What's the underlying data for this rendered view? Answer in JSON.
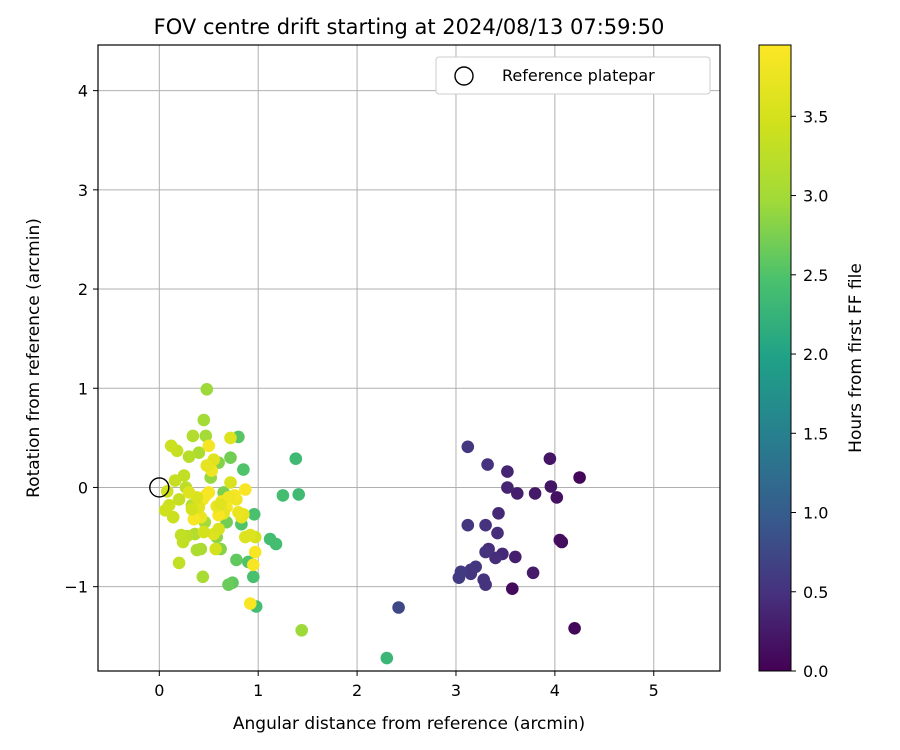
{
  "chart_data": {
    "type": "scatter",
    "title": "FOV centre drift starting at 2024/08/13 07:59:50",
    "xlabel": "Angular distance from reference (arcmin)",
    "ylabel": "Rotation from reference (arcmin)",
    "xlim": [
      -0.62,
      5.67
    ],
    "ylim": [
      -1.85,
      4.46
    ],
    "xticks": [
      0,
      1,
      2,
      3,
      4,
      5
    ],
    "yticks": [
      -1,
      0,
      1,
      2,
      3,
      4
    ],
    "grid": true,
    "legend": {
      "placement": "top-right",
      "entries": [
        "Reference platepar"
      ]
    },
    "reference_point": {
      "name": "Reference platepar",
      "x": 0.0,
      "y": 0.0
    },
    "colorbar": {
      "label": "Hours from first FF file",
      "range": [
        0.0,
        3.95
      ],
      "colormap": "viridis",
      "ticks": [
        0.0,
        0.5,
        1.0,
        1.5,
        2.0,
        2.5,
        3.0,
        3.5
      ],
      "tick_labels": [
        "0.0",
        "0.5",
        "1.0",
        "1.5",
        "2.0",
        "2.5",
        "3.0",
        "3.5"
      ]
    },
    "series": [
      {
        "points": [
          [
            4.25,
            0.1,
            0.05
          ],
          [
            4.2,
            -1.42,
            0.05
          ],
          [
            4.07,
            -0.55,
            0.1
          ],
          [
            4.05,
            -0.53,
            0.12
          ],
          [
            4.02,
            -0.1,
            0.15
          ],
          [
            3.96,
            0.01,
            0.2
          ],
          [
            3.95,
            0.29,
            0.2
          ],
          [
            3.8,
            -0.06,
            0.25
          ],
          [
            3.78,
            -0.86,
            0.25
          ],
          [
            3.62,
            -0.06,
            0.3
          ],
          [
            3.6,
            -0.7,
            0.3
          ],
          [
            3.57,
            -1.02,
            0.1
          ],
          [
            3.52,
            0.16,
            0.35
          ],
          [
            3.52,
            0.0,
            0.35
          ],
          [
            3.47,
            -0.67,
            0.4
          ],
          [
            3.43,
            -0.26,
            0.4
          ],
          [
            3.42,
            -0.46,
            0.45
          ],
          [
            3.4,
            -0.71,
            0.45
          ],
          [
            3.33,
            -0.62,
            0.45
          ],
          [
            3.32,
            0.23,
            0.5
          ],
          [
            3.3,
            -0.38,
            0.5
          ],
          [
            3.3,
            -0.65,
            0.5
          ],
          [
            3.28,
            -0.93,
            0.5
          ],
          [
            3.3,
            -0.98,
            0.5
          ],
          [
            3.2,
            -0.8,
            0.55
          ],
          [
            3.15,
            -0.83,
            0.55
          ],
          [
            3.15,
            -0.87,
            0.55
          ],
          [
            3.12,
            -0.38,
            0.55
          ],
          [
            3.12,
            0.41,
            0.55
          ],
          [
            3.05,
            -0.85,
            0.6
          ],
          [
            3.03,
            -0.91,
            0.6
          ],
          [
            2.42,
            -1.21,
            0.75
          ],
          [
            2.3,
            -1.72,
            2.3
          ],
          [
            1.44,
            -1.44,
            2.95
          ],
          [
            1.41,
            -0.07,
            2.35
          ],
          [
            1.38,
            0.29,
            2.35
          ],
          [
            1.25,
            -0.08,
            2.4
          ],
          [
            1.18,
            -0.57,
            2.4
          ],
          [
            1.12,
            -0.52,
            2.4
          ],
          [
            0.98,
            -1.2,
            2.4
          ],
          [
            0.96,
            -0.27,
            2.45
          ],
          [
            0.95,
            -0.9,
            2.45
          ],
          [
            0.9,
            -0.75,
            2.5
          ],
          [
            0.85,
            0.18,
            2.5
          ],
          [
            0.83,
            -0.37,
            2.5
          ],
          [
            0.8,
            0.51,
            2.55
          ],
          [
            0.78,
            -0.73,
            2.6
          ],
          [
            0.74,
            -0.96,
            2.6
          ],
          [
            0.7,
            -0.98,
            2.65
          ],
          [
            0.72,
            0.3,
            2.7
          ],
          [
            0.68,
            -0.35,
            2.7
          ],
          [
            0.65,
            -0.05,
            2.75
          ],
          [
            0.62,
            -0.62,
            2.8
          ],
          [
            0.6,
            0.25,
            2.8
          ],
          [
            0.58,
            -0.5,
            2.85
          ],
          [
            0.52,
            0.1,
            2.9
          ],
          [
            0.48,
            0.99,
            2.95
          ],
          [
            0.47,
            0.52,
            3.0
          ],
          [
            0.46,
            -0.35,
            3.0
          ],
          [
            0.45,
            0.68,
            3.0
          ],
          [
            0.44,
            -0.9,
            3.05
          ],
          [
            0.42,
            -0.62,
            3.05
          ],
          [
            0.4,
            0.35,
            3.1
          ],
          [
            0.38,
            -0.63,
            3.1
          ],
          [
            0.36,
            -0.47,
            3.15
          ],
          [
            0.34,
            0.52,
            3.15
          ],
          [
            0.33,
            -0.18,
            3.2
          ],
          [
            0.3,
            0.31,
            3.2
          ],
          [
            0.28,
            -0.49,
            3.25
          ],
          [
            0.27,
            0.0,
            3.25
          ],
          [
            0.25,
            0.12,
            3.3
          ],
          [
            0.24,
            -0.55,
            3.3
          ],
          [
            0.22,
            -0.48,
            3.3
          ],
          [
            0.2,
            -0.76,
            3.3
          ],
          [
            0.2,
            -0.12,
            3.35
          ],
          [
            0.18,
            0.37,
            3.35
          ],
          [
            0.16,
            0.07,
            3.35
          ],
          [
            0.14,
            -0.3,
            3.4
          ],
          [
            0.12,
            0.42,
            3.4
          ],
          [
            0.1,
            -0.18,
            3.4
          ],
          [
            0.08,
            -0.04,
            3.45
          ],
          [
            0.06,
            -0.23,
            3.45
          ],
          [
            0.97,
            -0.5,
            3.5
          ],
          [
            0.92,
            -0.48,
            3.6
          ],
          [
            0.87,
            -0.5,
            3.6
          ],
          [
            0.85,
            -0.27,
            3.7
          ],
          [
            0.83,
            -0.3,
            3.7
          ],
          [
            0.8,
            -0.25,
            3.75
          ],
          [
            0.78,
            -0.12,
            3.8
          ],
          [
            0.76,
            -0.08,
            3.85
          ],
          [
            0.72,
            0.05,
            3.55
          ],
          [
            0.72,
            0.5,
            3.6
          ],
          [
            0.7,
            -0.1,
            3.8
          ],
          [
            0.68,
            -0.2,
            3.85
          ],
          [
            0.65,
            -0.26,
            3.7
          ],
          [
            0.63,
            -0.14,
            3.8
          ],
          [
            0.6,
            -0.28,
            3.9
          ],
          [
            0.58,
            -0.19,
            3.75
          ],
          [
            0.55,
            0.28,
            3.65
          ],
          [
            0.55,
            -0.47,
            3.6
          ],
          [
            0.53,
            0.17,
            3.8
          ],
          [
            0.5,
            0.42,
            3.85
          ],
          [
            0.5,
            -0.05,
            3.9
          ],
          [
            0.48,
            0.22,
            3.7
          ],
          [
            0.47,
            -0.08,
            3.9
          ],
          [
            0.45,
            -0.45,
            3.5
          ],
          [
            0.44,
            -0.12,
            3.85
          ],
          [
            0.42,
            -0.3,
            3.75
          ],
          [
            0.4,
            -0.2,
            3.65
          ],
          [
            0.38,
            -0.1,
            3.55
          ],
          [
            0.35,
            -0.32,
            3.9
          ],
          [
            0.33,
            -0.22,
            3.5
          ],
          [
            0.3,
            -0.05,
            3.6
          ],
          [
            0.87,
            -0.02,
            3.9
          ],
          [
            0.95,
            -0.78,
            3.9
          ],
          [
            0.97,
            -0.65,
            3.9
          ],
          [
            0.92,
            -1.17,
            3.9
          ],
          [
            0.57,
            -0.62,
            3.5
          ],
          [
            0.6,
            -0.42,
            3.55
          ],
          [
            0.62,
            -0.17,
            3.65
          ]
        ]
      }
    ]
  }
}
